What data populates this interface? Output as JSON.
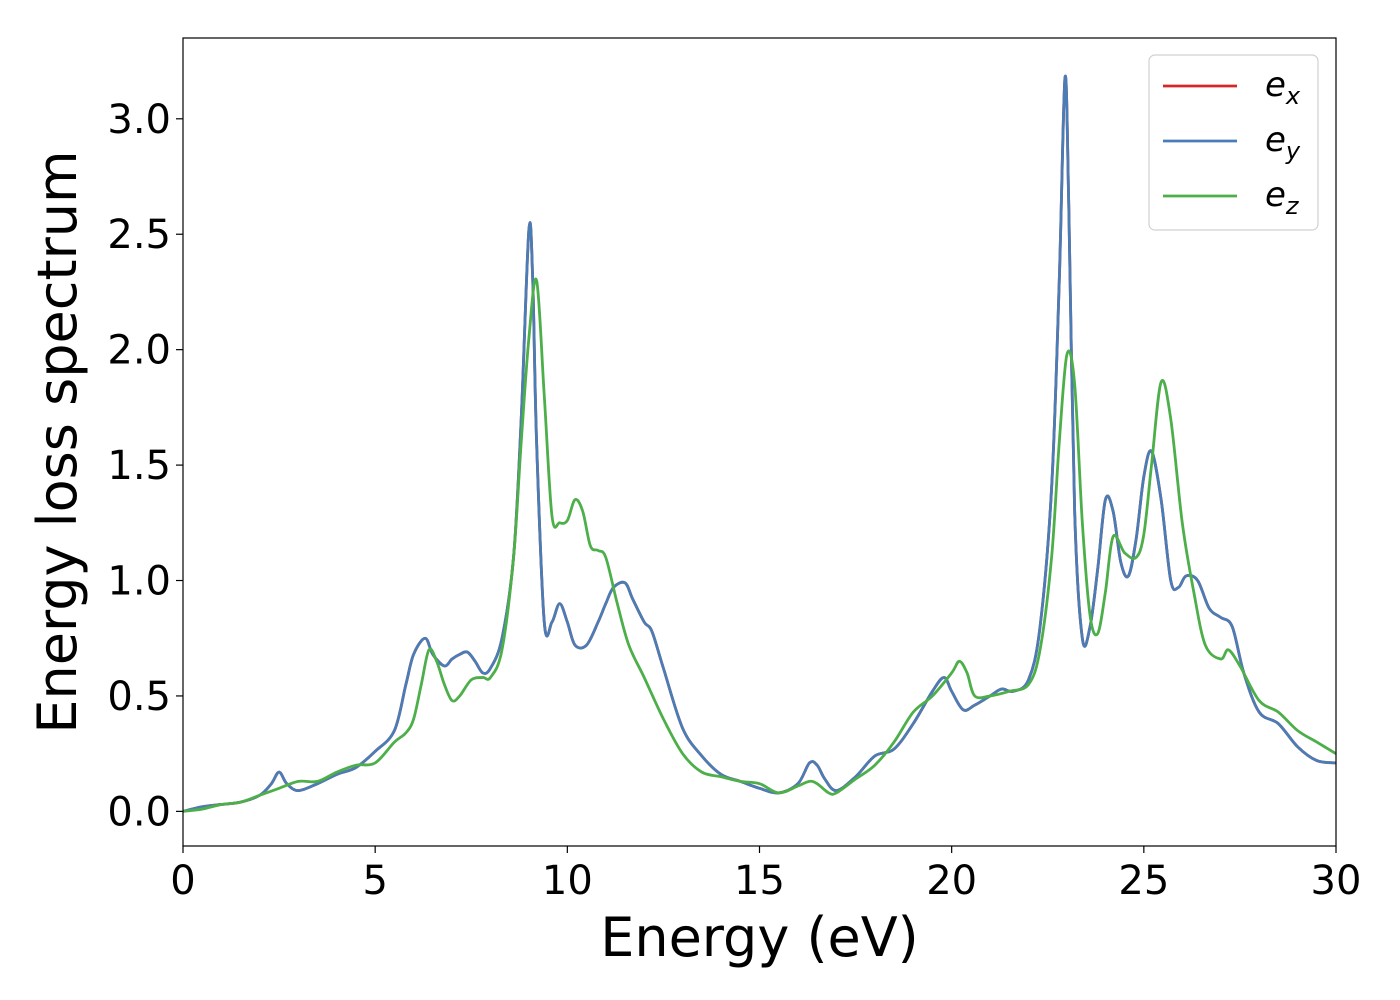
{
  "chart_data": {
    "type": "line",
    "xlabel": "Energy (eV)",
    "ylabel": "Energy loss spectrum",
    "xlim": [
      0,
      30
    ],
    "ylim": [
      -0.15,
      3.35
    ],
    "xticks": [
      "0",
      "5",
      "10",
      "15",
      "20",
      "25",
      "30"
    ],
    "yticks": [
      "0.0",
      "0.5",
      "1.0",
      "1.5",
      "2.0",
      "2.5",
      "3.0"
    ],
    "grid": false,
    "legend_position": "top-right",
    "series": [
      {
        "name": "e",
        "subscript": "x",
        "color": "#d62728",
        "x": [
          0,
          0.5,
          1,
          1.5,
          2,
          2.3,
          2.5,
          2.7,
          3,
          3.5,
          4,
          4.5,
          5,
          5.5,
          5.8,
          6,
          6.3,
          6.5,
          6.8,
          7,
          7.2,
          7.4,
          7.6,
          7.8,
          8,
          8.3,
          8.6,
          8.8,
          9,
          9.1,
          9.2,
          9.4,
          9.6,
          9.8,
          10,
          10.2,
          10.5,
          10.8,
          11,
          11.2,
          11.5,
          11.7,
          12,
          12.2,
          12.5,
          13,
          13.5,
          14,
          14.5,
          15,
          15.5,
          16,
          16.3,
          16.5,
          16.7,
          17,
          17.5,
          18,
          18.5,
          19,
          19.5,
          19.8,
          20,
          20.3,
          20.6,
          21,
          21.3,
          21.6,
          22,
          22.3,
          22.6,
          22.8,
          22.95,
          23.05,
          23.2,
          23.4,
          23.6,
          23.8,
          24,
          24.2,
          24.4,
          24.6,
          24.8,
          25,
          25.2,
          25.45,
          25.7,
          25.9,
          26.1,
          26.4,
          26.7,
          27,
          27.3,
          27.6,
          28,
          28.5,
          29,
          29.5,
          30
        ],
        "y": [
          0,
          0.02,
          0.03,
          0.04,
          0.07,
          0.12,
          0.17,
          0.12,
          0.09,
          0.12,
          0.16,
          0.19,
          0.26,
          0.35,
          0.55,
          0.68,
          0.75,
          0.68,
          0.63,
          0.66,
          0.68,
          0.69,
          0.65,
          0.6,
          0.62,
          0.75,
          1.1,
          1.7,
          2.52,
          2.3,
          1.6,
          0.82,
          0.82,
          0.9,
          0.82,
          0.72,
          0.72,
          0.82,
          0.9,
          0.97,
          0.99,
          0.92,
          0.82,
          0.78,
          0.62,
          0.36,
          0.24,
          0.16,
          0.13,
          0.1,
          0.08,
          0.12,
          0.21,
          0.2,
          0.14,
          0.09,
          0.15,
          0.24,
          0.27,
          0.38,
          0.52,
          0.58,
          0.52,
          0.44,
          0.46,
          0.5,
          0.53,
          0.52,
          0.57,
          0.8,
          1.4,
          2.3,
          3.18,
          2.6,
          1.3,
          0.75,
          0.8,
          1.05,
          1.35,
          1.3,
          1.08,
          1.02,
          1.18,
          1.45,
          1.56,
          1.35,
          1.0,
          0.97,
          1.02,
          1.0,
          0.88,
          0.84,
          0.8,
          0.6,
          0.43,
          0.38,
          0.28,
          0.22,
          0.21
        ]
      },
      {
        "name": "e",
        "subscript": "y",
        "color": "#4a7db5",
        "x": [
          0,
          0.5,
          1,
          1.5,
          2,
          2.3,
          2.5,
          2.7,
          3,
          3.5,
          4,
          4.5,
          5,
          5.5,
          5.8,
          6,
          6.3,
          6.5,
          6.8,
          7,
          7.2,
          7.4,
          7.6,
          7.8,
          8,
          8.3,
          8.6,
          8.8,
          9,
          9.1,
          9.2,
          9.4,
          9.6,
          9.8,
          10,
          10.2,
          10.5,
          10.8,
          11,
          11.2,
          11.5,
          11.7,
          12,
          12.2,
          12.5,
          13,
          13.5,
          14,
          14.5,
          15,
          15.5,
          16,
          16.3,
          16.5,
          16.7,
          17,
          17.5,
          18,
          18.5,
          19,
          19.5,
          19.8,
          20,
          20.3,
          20.6,
          21,
          21.3,
          21.6,
          22,
          22.3,
          22.6,
          22.8,
          22.95,
          23.05,
          23.2,
          23.4,
          23.6,
          23.8,
          24,
          24.2,
          24.4,
          24.6,
          24.8,
          25,
          25.2,
          25.45,
          25.7,
          25.9,
          26.1,
          26.4,
          26.7,
          27,
          27.3,
          27.6,
          28,
          28.5,
          29,
          29.5,
          30
        ],
        "y": [
          0,
          0.02,
          0.03,
          0.04,
          0.07,
          0.12,
          0.17,
          0.12,
          0.09,
          0.12,
          0.16,
          0.19,
          0.26,
          0.35,
          0.55,
          0.68,
          0.75,
          0.68,
          0.63,
          0.66,
          0.68,
          0.69,
          0.65,
          0.6,
          0.62,
          0.75,
          1.1,
          1.7,
          2.52,
          2.3,
          1.6,
          0.82,
          0.82,
          0.9,
          0.82,
          0.72,
          0.72,
          0.82,
          0.9,
          0.97,
          0.99,
          0.92,
          0.82,
          0.78,
          0.62,
          0.36,
          0.24,
          0.16,
          0.13,
          0.1,
          0.08,
          0.12,
          0.21,
          0.2,
          0.14,
          0.09,
          0.15,
          0.24,
          0.27,
          0.38,
          0.52,
          0.58,
          0.52,
          0.44,
          0.46,
          0.5,
          0.53,
          0.52,
          0.57,
          0.8,
          1.4,
          2.3,
          3.18,
          2.6,
          1.3,
          0.75,
          0.8,
          1.05,
          1.35,
          1.3,
          1.08,
          1.02,
          1.18,
          1.45,
          1.56,
          1.35,
          1.0,
          0.97,
          1.02,
          1.0,
          0.88,
          0.84,
          0.8,
          0.6,
          0.43,
          0.38,
          0.28,
          0.22,
          0.21
        ]
      },
      {
        "name": "e",
        "subscript": "z",
        "color": "#4daf4a",
        "x": [
          0,
          0.5,
          1,
          1.5,
          2,
          2.5,
          3,
          3.5,
          4,
          4.5,
          5,
          5.5,
          5.8,
          6,
          6.2,
          6.4,
          6.6,
          6.8,
          7,
          7.2,
          7.5,
          7.8,
          8,
          8.3,
          8.6,
          8.8,
          9,
          9.2,
          9.4,
          9.6,
          9.8,
          10,
          10.2,
          10.4,
          10.6,
          10.8,
          11,
          11.3,
          11.6,
          12,
          12.5,
          13,
          13.5,
          14,
          14.5,
          15,
          15.5,
          16,
          16.3,
          16.5,
          16.8,
          17,
          17.5,
          18,
          18.5,
          19,
          19.5,
          20,
          20.2,
          20.4,
          20.6,
          21,
          21.5,
          22,
          22.3,
          22.6,
          22.8,
          23,
          23.2,
          23.4,
          23.6,
          23.8,
          24,
          24.2,
          24.5,
          24.8,
          25,
          25.2,
          25.45,
          25.7,
          26,
          26.3,
          26.6,
          27,
          27.2,
          27.5,
          28,
          28.5,
          29,
          29.5,
          30
        ],
        "y": [
          0,
          0.01,
          0.03,
          0.04,
          0.07,
          0.1,
          0.13,
          0.13,
          0.17,
          0.2,
          0.21,
          0.3,
          0.34,
          0.4,
          0.55,
          0.7,
          0.65,
          0.55,
          0.48,
          0.5,
          0.57,
          0.58,
          0.58,
          0.7,
          1.1,
          1.6,
          2.05,
          2.3,
          1.8,
          1.28,
          1.25,
          1.26,
          1.35,
          1.3,
          1.15,
          1.13,
          1.1,
          0.9,
          0.72,
          0.58,
          0.4,
          0.25,
          0.17,
          0.15,
          0.13,
          0.12,
          0.08,
          0.11,
          0.13,
          0.12,
          0.08,
          0.08,
          0.14,
          0.2,
          0.3,
          0.43,
          0.5,
          0.6,
          0.65,
          0.6,
          0.5,
          0.5,
          0.52,
          0.55,
          0.7,
          1.1,
          1.6,
          1.98,
          1.85,
          1.25,
          0.85,
          0.77,
          0.95,
          1.19,
          1.12,
          1.1,
          1.2,
          1.5,
          1.86,
          1.7,
          1.25,
          0.95,
          0.72,
          0.66,
          0.7,
          0.63,
          0.48,
          0.43,
          0.35,
          0.3,
          0.25
        ]
      }
    ]
  }
}
